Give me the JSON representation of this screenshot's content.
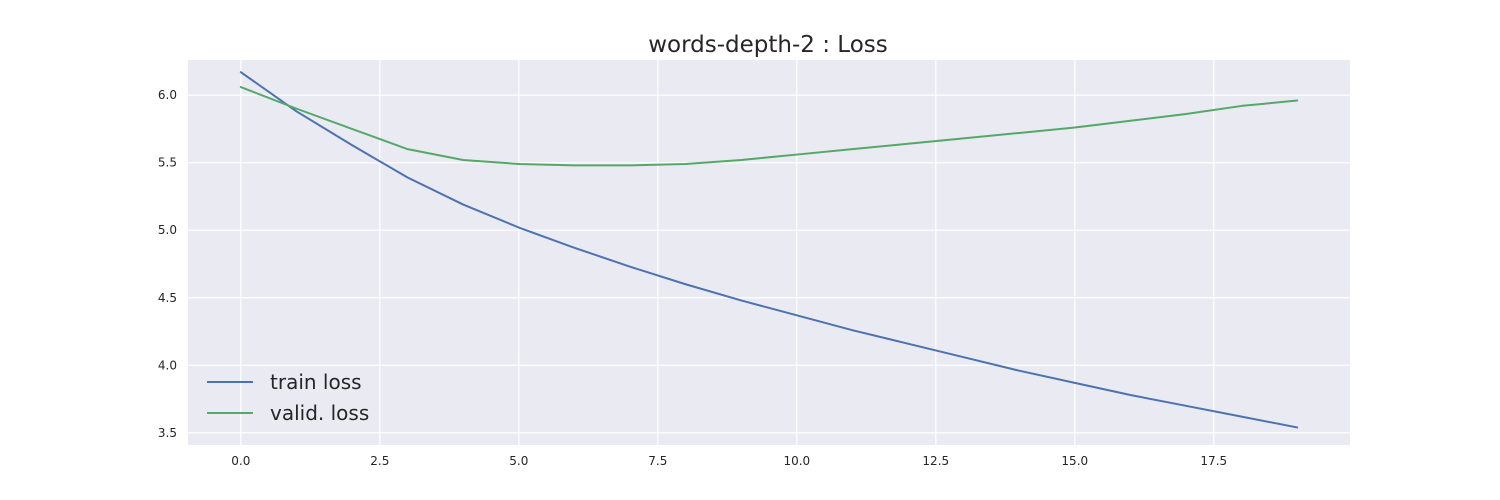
{
  "chart_data": {
    "type": "line",
    "title": "words-depth-2 : Loss",
    "xlabel": "",
    "ylabel": "",
    "xlim": [
      -0.95,
      19.95
    ],
    "ylim": [
      3.41,
      6.26
    ],
    "xticks": [
      0.0,
      2.5,
      5.0,
      7.5,
      10.0,
      12.5,
      15.0,
      17.5
    ],
    "xtick_labels": [
      "0.0",
      "2.5",
      "5.0",
      "7.5",
      "10.0",
      "12.5",
      "15.0",
      "17.5"
    ],
    "yticks": [
      3.5,
      4.0,
      4.5,
      5.0,
      5.5,
      6.0
    ],
    "ytick_labels": [
      "3.5",
      "4.0",
      "4.5",
      "5.0",
      "5.5",
      "6.0"
    ],
    "grid": true,
    "legend_position": "lower-left",
    "x": [
      0,
      1,
      2,
      3,
      4,
      5,
      6,
      7,
      8,
      9,
      10,
      11,
      12,
      13,
      14,
      15,
      16,
      17,
      18,
      19
    ],
    "series": [
      {
        "name": "train loss",
        "color": "#4c72b0",
        "values": [
          6.17,
          5.88,
          5.63,
          5.39,
          5.19,
          5.02,
          4.87,
          4.73,
          4.6,
          4.48,
          4.37,
          4.26,
          4.16,
          4.06,
          3.96,
          3.87,
          3.78,
          3.7,
          3.62,
          3.54
        ]
      },
      {
        "name": "valid. loss",
        "color": "#55a868",
        "values": [
          6.06,
          5.9,
          5.75,
          5.6,
          5.52,
          5.49,
          5.48,
          5.48,
          5.49,
          5.52,
          5.56,
          5.6,
          5.64,
          5.68,
          5.72,
          5.76,
          5.81,
          5.86,
          5.92,
          5.96
        ]
      }
    ]
  },
  "colors": {
    "plot_background": "#eaeaf2",
    "grid": "#ffffff",
    "text": "#262626"
  }
}
